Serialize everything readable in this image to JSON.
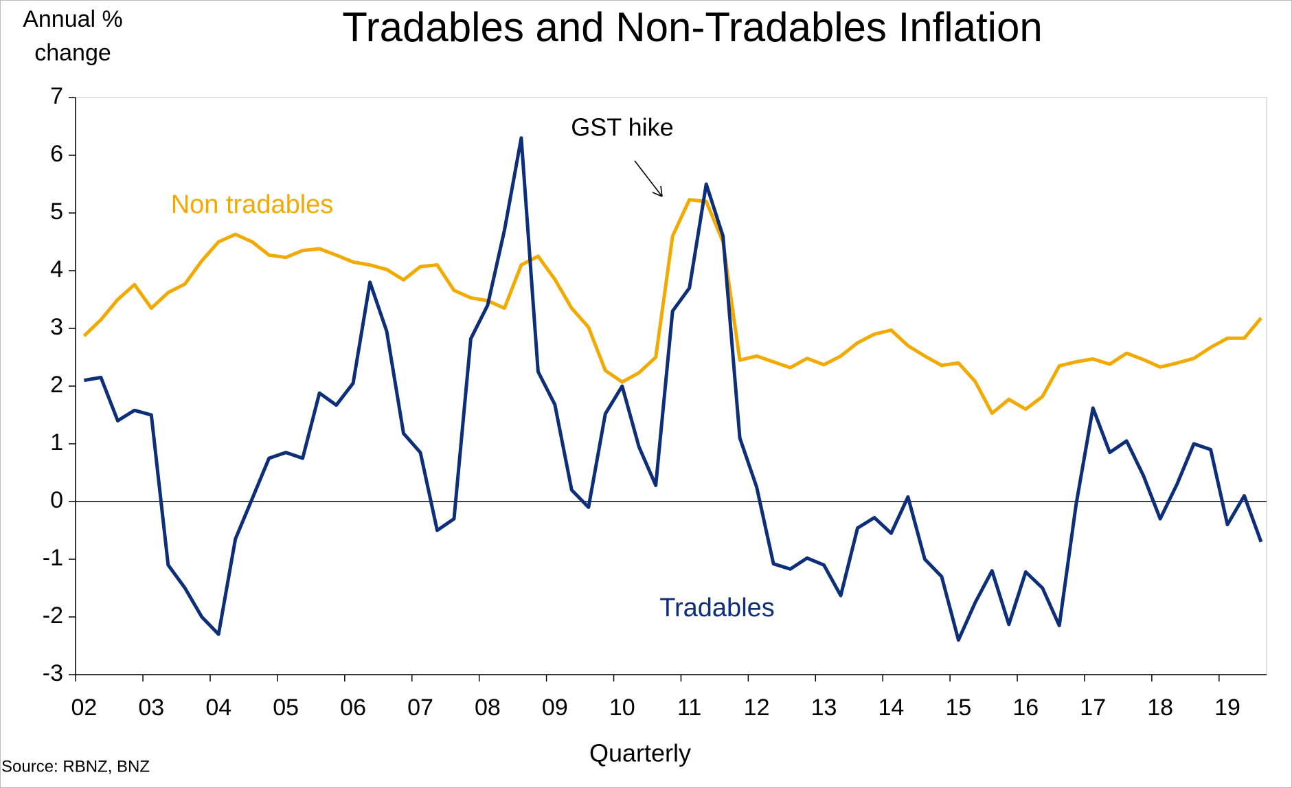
{
  "chart_data": {
    "type": "line",
    "title": "Tradables and Non-Tradables Inflation",
    "ylabel": [
      "Annual %",
      "change"
    ],
    "xlabel": "Quarterly",
    "source": "Source: RBNZ, BNZ",
    "annotations": [
      "GST hike"
    ],
    "categories": [
      "02",
      null,
      null,
      null,
      "03",
      null,
      null,
      null,
      "04",
      null,
      null,
      null,
      "05",
      null,
      null,
      null,
      "06",
      null,
      null,
      null,
      "07",
      null,
      null,
      null,
      "08",
      null,
      null,
      null,
      "09",
      null,
      null,
      null,
      "10",
      null,
      null,
      null,
      "11",
      null,
      null,
      null,
      "12",
      null,
      null,
      null,
      "13",
      null,
      null,
      null,
      "14",
      null,
      null,
      null,
      "15",
      null,
      null,
      null,
      "16",
      null,
      null,
      null,
      "17",
      null,
      null,
      null,
      "18",
      null,
      null,
      null,
      "19",
      null,
      null
    ],
    "series": [
      {
        "name": "Non tradables",
        "color": "#f2a900",
        "values": [
          2.87,
          3.15,
          3.5,
          3.76,
          3.35,
          3.62,
          3.77,
          4.17,
          4.5,
          4.63,
          4.5,
          4.27,
          4.23,
          4.35,
          4.38,
          4.27,
          4.15,
          4.1,
          4.02,
          3.84,
          4.07,
          4.1,
          3.66,
          3.53,
          3.48,
          3.35,
          4.1,
          4.25,
          3.85,
          3.35,
          3.02,
          2.27,
          2.07,
          2.23,
          2.5,
          4.6,
          5.23,
          5.2,
          4.5,
          2.45,
          2.52,
          2.42,
          2.32,
          2.48,
          2.37,
          2.52,
          2.75,
          2.9,
          2.97,
          2.7,
          2.52,
          2.36,
          2.4,
          2.08,
          1.53,
          1.77,
          1.6,
          1.82,
          2.35,
          2.42,
          2.47,
          2.38,
          2.57,
          2.46,
          2.33,
          2.4,
          2.48,
          2.67,
          2.83,
          2.83,
          3.18
        ]
      },
      {
        "name": "Tradables",
        "color": "#0d2f7a",
        "values": [
          2.1,
          2.15,
          1.4,
          1.58,
          1.5,
          -1.1,
          -1.5,
          -2.0,
          -2.3,
          -0.65,
          0.05,
          0.75,
          0.85,
          0.75,
          1.88,
          1.67,
          2.05,
          3.8,
          2.95,
          1.18,
          0.85,
          -0.5,
          -0.3,
          2.82,
          3.4,
          4.7,
          6.3,
          2.25,
          1.68,
          0.2,
          -0.1,
          1.52,
          2.0,
          0.95,
          0.28,
          3.3,
          3.7,
          5.5,
          4.6,
          1.1,
          0.25,
          -1.08,
          -1.17,
          -0.98,
          -1.1,
          -1.63,
          -0.46,
          -0.28,
          -0.55,
          0.08,
          -1.0,
          -1.3,
          -2.4,
          -1.75,
          -1.2,
          -2.13,
          -1.22,
          -1.5,
          -2.15,
          -0.05,
          1.62,
          0.85,
          1.05,
          0.45,
          -0.3,
          0.3,
          1.0,
          0.9,
          -0.4,
          0.1,
          -0.7
        ]
      }
    ],
    "ylim": [
      -3,
      7
    ],
    "yticks": [
      -3,
      -2,
      -1,
      0,
      1,
      2,
      3,
      4,
      5,
      6,
      7
    ],
    "grid": false
  }
}
